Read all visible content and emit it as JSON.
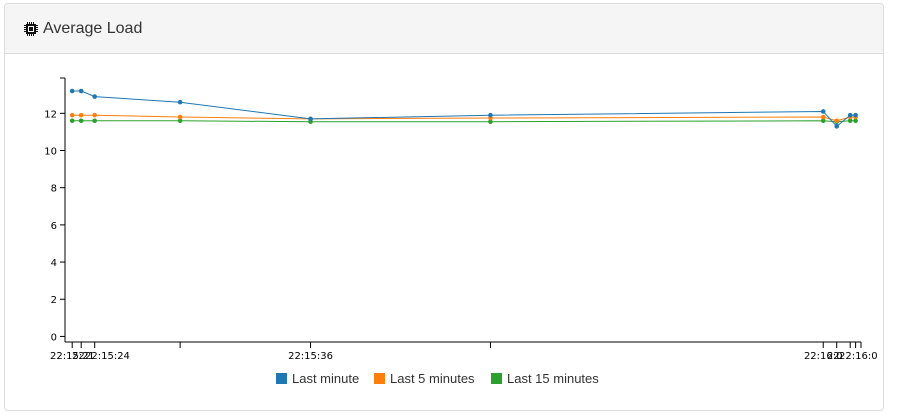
{
  "panel": {
    "title": "Average Load",
    "icon": "cpu-chip-icon"
  },
  "chart_data": {
    "type": "line",
    "ylim": [
      -0.3,
      13.9
    ],
    "yticks": [
      0,
      2,
      4,
      6,
      8,
      10,
      12
    ],
    "x_tick_labels": [
      "22:15:2",
      "22:1",
      "22:15:24",
      "22:15:36",
      "22:16:0",
      "22:",
      "22:16:0"
    ],
    "legend_position": "bottom-center",
    "grid": false,
    "series": [
      {
        "name": "Last minute",
        "color": "#1f77b4",
        "points": [
          [
            22.5,
            13.2
          ],
          [
            23,
            13.2
          ],
          [
            23.75,
            12.9
          ],
          [
            28.5,
            12.6
          ],
          [
            35.75,
            11.7
          ],
          [
            45.75,
            11.9
          ],
          [
            64.25,
            12.1
          ],
          [
            65,
            11.3
          ],
          [
            65.75,
            11.9
          ],
          [
            66.05,
            11.9
          ]
        ]
      },
      {
        "name": "Last 5 minutes",
        "color": "#ff7f0e",
        "points": [
          [
            22.5,
            11.9
          ],
          [
            23,
            11.9
          ],
          [
            23.75,
            11.9
          ],
          [
            28.5,
            11.8
          ],
          [
            35.75,
            11.7
          ],
          [
            45.75,
            11.75
          ],
          [
            64.25,
            11.8
          ],
          [
            65,
            11.6
          ],
          [
            65.75,
            11.8
          ],
          [
            66.05,
            11.8
          ]
        ]
      },
      {
        "name": "Last 15 minutes",
        "color": "#2ca02c",
        "points": [
          [
            22.5,
            11.6
          ],
          [
            23,
            11.6
          ],
          [
            23.75,
            11.6
          ],
          [
            28.5,
            11.6
          ],
          [
            35.75,
            11.55
          ],
          [
            45.75,
            11.55
          ],
          [
            64.25,
            11.6
          ],
          [
            65,
            11.55
          ],
          [
            65.75,
            11.6
          ],
          [
            66.05,
            11.6
          ]
        ]
      }
    ]
  }
}
